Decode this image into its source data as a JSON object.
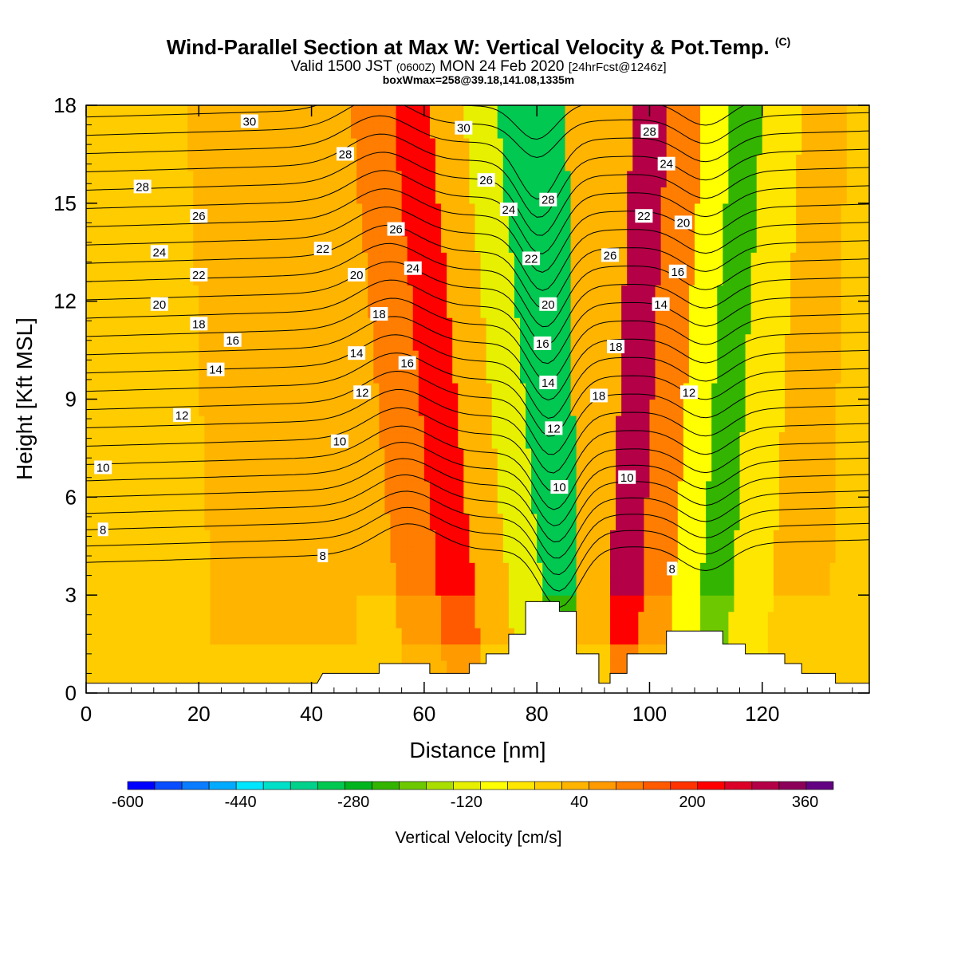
{
  "header": {
    "title": "Wind-Parallel Section at Max W: Vertical Velocity & Pot.Temp.",
    "copyright": "(C)",
    "valid_prefix": "Valid 1500 JST",
    "valid_utc": "(0600Z)",
    "valid_date": "MON 24 Feb 2020",
    "forecast": "[24hrFcst@1246z]",
    "boxinfo": "boxWmax=258@39.18,141.08,1335m"
  },
  "chart_data": {
    "type": "heatmap",
    "xlabel": "Distance [nm]",
    "ylabel": "Height [Kft MSL]",
    "xlim": [
      0,
      139
    ],
    "ylim": [
      0,
      18
    ],
    "xticks": [
      0,
      20,
      40,
      60,
      80,
      100,
      120
    ],
    "yticks": [
      0,
      3,
      6,
      9,
      12,
      15,
      18
    ],
    "colorbar": {
      "label": "Vertical Velocity [cm/s]",
      "range": [
        -600,
        400
      ],
      "step": 40,
      "ticks": [
        -600,
        -440,
        -280,
        -120,
        40,
        200,
        360
      ],
      "colors": [
        "#0000ff",
        "#0a4cff",
        "#0a7cff",
        "#00aaff",
        "#00e6ff",
        "#00e0c8",
        "#00d28c",
        "#00c850",
        "#00b41e",
        "#32b400",
        "#6ec800",
        "#aade00",
        "#e6f000",
        "#ffff00",
        "#ffe600",
        "#ffcc00",
        "#ffb400",
        "#ff9b00",
        "#ff7d00",
        "#ff5a00",
        "#ff3200",
        "#ff0000",
        "#dc0028",
        "#b40046",
        "#8c005a",
        "#640082"
      ]
    },
    "velocity_bands": [
      {
        "x_center": 0,
        "value": 20
      },
      {
        "x_center": 45,
        "value": 60
      },
      {
        "x_center": 52,
        "value": 40
      },
      {
        "x_center": 60,
        "value": 120
      },
      {
        "x_center": 67,
        "value": 240
      },
      {
        "x_center": 73,
        "value": 60
      },
      {
        "x_center": 79,
        "value": -120
      },
      {
        "x_center": 85,
        "value": -300
      },
      {
        "x_center": 90,
        "value": 60
      },
      {
        "x_center": 95,
        "value": 340
      },
      {
        "x_center": 101,
        "value": 120
      },
      {
        "x_center": 106,
        "value": -80
      },
      {
        "x_center": 111,
        "value": -220
      },
      {
        "x_center": 117,
        "value": -40
      },
      {
        "x_center": 125,
        "value": 40
      },
      {
        "x_center": 139,
        "value": 20
      }
    ],
    "terrain": [
      [
        0,
        0.3
      ],
      [
        41,
        0.3
      ],
      [
        42,
        0.6
      ],
      [
        52,
        0.6
      ],
      [
        52,
        0.9
      ],
      [
        61,
        0.9
      ],
      [
        61,
        0.6
      ],
      [
        68,
        0.6
      ],
      [
        68,
        0.9
      ],
      [
        71,
        0.9
      ],
      [
        71,
        1.2
      ],
      [
        75,
        1.2
      ],
      [
        75,
        1.8
      ],
      [
        78,
        1.8
      ],
      [
        78,
        2.8
      ],
      [
        84,
        2.8
      ],
      [
        84,
        2.5
      ],
      [
        87,
        2.5
      ],
      [
        87,
        1.2
      ],
      [
        91,
        1.2
      ],
      [
        91,
        0.3
      ],
      [
        93,
        0.3
      ],
      [
        93,
        0.6
      ],
      [
        96,
        0.6
      ],
      [
        96,
        1.2
      ],
      [
        103,
        1.2
      ],
      [
        103,
        1.9
      ],
      [
        113,
        1.9
      ],
      [
        113,
        1.5
      ],
      [
        117,
        1.5
      ],
      [
        117,
        1.2
      ],
      [
        124,
        1.2
      ],
      [
        124,
        0.9
      ],
      [
        127,
        0.9
      ],
      [
        127,
        0.6
      ],
      [
        133,
        0.6
      ],
      [
        133,
        0.3
      ],
      [
        139,
        0.3
      ]
    ],
    "theta_contours": {
      "levels_c": [
        6,
        7,
        8,
        9,
        10,
        11,
        12,
        13,
        14,
        15,
        16,
        17,
        18,
        19,
        20,
        21,
        22,
        23,
        24,
        25,
        26,
        27,
        28,
        29,
        30,
        31
      ],
      "labeled": [
        {
          "x": 3,
          "y": 6.9,
          "label": "10"
        },
        {
          "x": 3,
          "y": 5.0,
          "label": "8"
        },
        {
          "x": 17,
          "y": 8.5,
          "label": "12"
        },
        {
          "x": 23,
          "y": 9.9,
          "label": "14"
        },
        {
          "x": 26,
          "y": 10.8,
          "label": "16"
        },
        {
          "x": 20,
          "y": 11.3,
          "label": "18"
        },
        {
          "x": 13,
          "y": 11.9,
          "label": "20"
        },
        {
          "x": 20,
          "y": 12.8,
          "label": "22"
        },
        {
          "x": 13,
          "y": 13.5,
          "label": "24"
        },
        {
          "x": 20,
          "y": 14.6,
          "label": "26"
        },
        {
          "x": 10,
          "y": 15.5,
          "label": "28"
        },
        {
          "x": 29,
          "y": 17.5,
          "label": "30"
        },
        {
          "x": 42,
          "y": 4.2,
          "label": "8"
        },
        {
          "x": 45,
          "y": 7.7,
          "label": "10"
        },
        {
          "x": 49,
          "y": 9.2,
          "label": "12"
        },
        {
          "x": 48,
          "y": 10.4,
          "label": "14"
        },
        {
          "x": 57,
          "y": 10.1,
          "label": "16"
        },
        {
          "x": 52,
          "y": 11.6,
          "label": "18"
        },
        {
          "x": 48,
          "y": 12.8,
          "label": "20"
        },
        {
          "x": 42,
          "y": 13.6,
          "label": "22"
        },
        {
          "x": 58,
          "y": 13.0,
          "label": "24"
        },
        {
          "x": 55,
          "y": 14.2,
          "label": "26"
        },
        {
          "x": 46,
          "y": 16.5,
          "label": "28"
        },
        {
          "x": 67,
          "y": 17.3,
          "label": "30"
        },
        {
          "x": 71,
          "y": 15.7,
          "label": "26"
        },
        {
          "x": 75,
          "y": 14.8,
          "label": "24"
        },
        {
          "x": 79,
          "y": 13.3,
          "label": "22"
        },
        {
          "x": 82,
          "y": 11.9,
          "label": "20"
        },
        {
          "x": 81,
          "y": 10.7,
          "label": "16"
        },
        {
          "x": 82,
          "y": 9.5,
          "label": "14"
        },
        {
          "x": 83,
          "y": 8.1,
          "label": "12"
        },
        {
          "x": 84,
          "y": 6.3,
          "label": "10"
        },
        {
          "x": 82,
          "y": 15.1,
          "label": "28"
        },
        {
          "x": 93,
          "y": 13.4,
          "label": "26"
        },
        {
          "x": 94,
          "y": 10.6,
          "label": "18"
        },
        {
          "x": 91,
          "y": 9.1,
          "label": "18"
        },
        {
          "x": 96,
          "y": 6.6,
          "label": "10"
        },
        {
          "x": 100,
          "y": 17.2,
          "label": "28"
        },
        {
          "x": 103,
          "y": 16.2,
          "label": "24"
        },
        {
          "x": 99,
          "y": 14.6,
          "label": "22"
        },
        {
          "x": 106,
          "y": 14.4,
          "label": "20"
        },
        {
          "x": 105,
          "y": 12.9,
          "label": "16"
        },
        {
          "x": 102,
          "y": 11.9,
          "label": "14"
        },
        {
          "x": 107,
          "y": 9.2,
          "label": "12"
        },
        {
          "x": 104,
          "y": 3.8,
          "label": "8"
        }
      ]
    }
  }
}
